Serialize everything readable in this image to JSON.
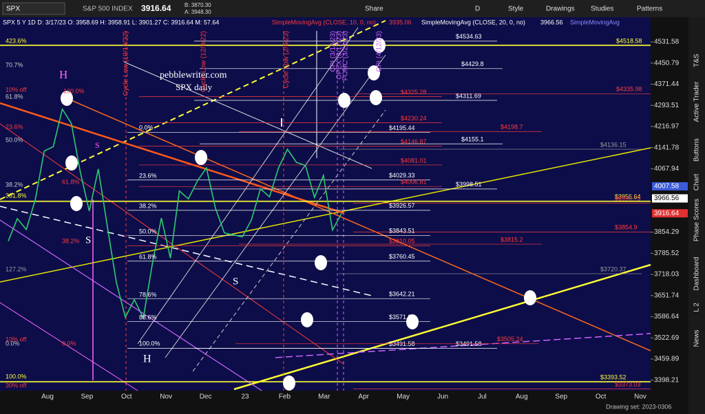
{
  "toolbar": {
    "symbol": "SPX",
    "name": "S&P 500 INDEX",
    "last": "3916.64",
    "bid": "B: 3870.30",
    "ask": "A: 3948.30",
    "buttons": [
      "Share",
      "D",
      "Style",
      "Drawings",
      "Studies",
      "Patterns"
    ]
  },
  "header": {
    "quote": "SPX 5 Y 1D  D: 3/17/23  O: 3958.69  H: 3958.91  L: 3901.27  C: 3916.64  M: 57.64",
    "studies": [
      {
        "text": "SimpleMovingAvg (CLOSE, 10, 0, no)",
        "value": "3935.06",
        "color": "#ff3b3b"
      },
      {
        "text": "SimpleMovingAvg (CLOSE, 20, 0, no)",
        "value": "3966.56",
        "color": "#ffffff"
      },
      {
        "text": "SimpleMovingAvg",
        "color": "#8c8cff"
      }
    ]
  },
  "chart_data": {
    "type": "line",
    "log_scale": true,
    "ylim": [
      3368,
      4628
    ],
    "yticks": [
      4531.58,
      4450.79,
      4371.44,
      4293.51,
      4216.97,
      4141.78,
      4067.94,
      3854.29,
      3785.52,
      3718.03,
      3651.74,
      3586.64,
      3522.69,
      3459.89,
      3398.21
    ],
    "time_labels": [
      "Aug",
      "Sep",
      "Oct",
      "Nov",
      "Dec",
      "23",
      "Feb",
      "Mar",
      "Apr",
      "May",
      "Jun",
      "Jul",
      "Aug",
      "Sep",
      "Oct",
      "Nov"
    ],
    "series": [
      {
        "color": "#2ecc71",
        "values": [
          3825,
          3899,
          3863,
          3962,
          4130,
          4145,
          4280,
          4228,
          4057,
          3924,
          4067,
          3873,
          3693,
          3585,
          3639,
          3583,
          3752,
          3901,
          3770,
          3992,
          3965,
          4026,
          4071,
          3934,
          3852,
          3845,
          3839,
          3895,
          3999,
          3972,
          4070,
          4136,
          4090,
          4079,
          3970,
          4045,
          3861,
          3916
        ]
      }
    ],
    "levels": [
      {
        "label": "$4534.63",
        "value": 4534.63,
        "color": "#ffffff"
      },
      {
        "label": "$4518.58",
        "value": 4518.58,
        "color": "#ffff33"
      },
      {
        "label": "$4429.8",
        "value": 4429.8,
        "color": "#ffffff"
      },
      {
        "label": "$4325.28",
        "value": 4325.28,
        "color": "#ff3b3b"
      },
      {
        "label": "$4335.98",
        "value": 4335.98,
        "color": "#ff3b3b"
      },
      {
        "label": "$4311.69",
        "value": 4311.69,
        "color": "#ffffff"
      },
      {
        "label": "$4230.24",
        "value": 4230.24,
        "color": "#ff3b3b"
      },
      {
        "label": "$4198.7",
        "value": 4198.7,
        "color": "#ff3b3b"
      },
      {
        "label": "$4195.44",
        "value": 4195.44,
        "color": "#ffffff"
      },
      {
        "label": "$4146.87",
        "value": 4146.87,
        "color": "#ff3b3b"
      },
      {
        "label": "$4155.1",
        "value": 4155.1,
        "color": "#ffffff"
      },
      {
        "label": "$4136.15",
        "value": 4136.15,
        "color": "#9a9a9a"
      },
      {
        "label": "$4081.01",
        "value": 4081.01,
        "color": "#ff3b3b"
      },
      {
        "label": "$4029.33",
        "value": 4029.33,
        "color": "#ffffff"
      },
      {
        "label": "$4006.81",
        "value": 4006.81,
        "color": "#ff3b3b"
      },
      {
        "label": "$3998.51",
        "value": 3998.51,
        "color": "#ffffff"
      },
      {
        "label": "$3956.64",
        "value": 3956.64,
        "color": "#ffff33"
      },
      {
        "label": "$3950.73",
        "value": 3950.73,
        "color": "#ff3b3b"
      },
      {
        "label": "$3926.57",
        "value": 3926.57,
        "color": "#ffffff"
      },
      {
        "label": "$3854.9",
        "value": 3854.9,
        "color": "#ff3b3b"
      },
      {
        "label": "$3843.51",
        "value": 3843.51,
        "color": "#ffffff"
      },
      {
        "label": "$3810.05",
        "value": 3810.05,
        "color": "#ff3b3b"
      },
      {
        "label": "$3815.2",
        "value": 3815.2,
        "color": "#ff3b3b"
      },
      {
        "label": "$3760.45",
        "value": 3760.45,
        "color": "#ffffff"
      },
      {
        "label": "$3720.37",
        "value": 3720.37,
        "color": "#9a9a9a"
      },
      {
        "label": "$3642.21",
        "value": 3642.21,
        "color": "#ffffff"
      },
      {
        "label": "$3571.82",
        "value": 3571.82,
        "color": "#ffffff"
      },
      {
        "label": "$3491.58",
        "value": 3491.58,
        "color": "#ffffff"
      },
      {
        "label": "$3491.58",
        "value": 3491.58,
        "color": "#ffffff"
      },
      {
        "label": "$3505.24",
        "value": 3505.24,
        "color": "#ff3b3b"
      },
      {
        "label": "$3393.52",
        "value": 3393.52,
        "color": "#ffff33"
      },
      {
        "label": "$3373.03",
        "value": 3373.03,
        "color": "#ff3b3b"
      }
    ],
    "price_badges": [
      {
        "value": 4007.58,
        "color": "#3b5bdb"
      },
      {
        "value": 3966.56,
        "color": "#ffffff"
      },
      {
        "value": 3916.64,
        "color": "#e03131"
      }
    ],
    "annotations": [
      {
        "text": "423.6%",
        "color": "#ffff33"
      },
      {
        "text": "70.7%",
        "color": "#cccccc"
      },
      {
        "text": "61.8%",
        "color": "#cccccc"
      },
      {
        "text": "10% off",
        "color": "#ff3b3b"
      },
      {
        "text": "100.0%",
        "color": "#ff3b3b"
      },
      {
        "text": "23.6%",
        "color": "#ff3b3b"
      },
      {
        "text": "50.0%",
        "color": "#cccccc"
      },
      {
        "text": "38.2%",
        "color": "#cccccc"
      },
      {
        "text": "361.8%",
        "color": "#ffff33"
      },
      {
        "text": "0.0%",
        "color": "#ffffff"
      },
      {
        "text": "23.6%",
        "color": "#ffffff"
      },
      {
        "text": "38.2%",
        "color": "#ffffff"
      },
      {
        "text": "50.0%",
        "color": "#ffffff"
      },
      {
        "text": "61.8%",
        "color": "#ffffff"
      },
      {
        "text": "78.6%",
        "color": "#ffffff"
      },
      {
        "text": "88.6%",
        "color": "#ffffff"
      },
      {
        "text": "100.0%",
        "color": "#ffffff"
      },
      {
        "text": "61.8%",
        "color": "#ff3b3b"
      },
      {
        "text": "38.2%",
        "color": "#ff3b3b"
      },
      {
        "text": "10% off",
        "color": "#ff3b3b"
      },
      {
        "text": "0.0%",
        "color": "#cccccc"
      },
      {
        "text": "0.0%",
        "color": "#ff3b3b"
      },
      {
        "text": "100.0%",
        "color": "#ffff33"
      },
      {
        "text": "30% off",
        "color": "#ff3b3b"
      },
      {
        "text": "127.2%",
        "color": "#9a9a9a"
      },
      {
        "text": "pebblewriter.com",
        "color": "#ffffff"
      },
      {
        "text": "SPX daily",
        "color": "#ffffff"
      },
      {
        "text": "H",
        "color": "#ff66ff"
      },
      {
        "text": "H",
        "color": "#ffffff"
      },
      {
        "text": "S",
        "color": "#ffffff"
      },
      {
        "text": "S",
        "color": "#ffffff"
      },
      {
        "text": "S",
        "color": "#ff66ff"
      },
      {
        "text": "Cycle Low (10/13/22)",
        "color": "#ff3b3b"
      },
      {
        "text": "Cycle Low (12/9/22)",
        "color": "#ff3b3b"
      },
      {
        "text": "Cycle Low (2/6/23)",
        "color": "#ff3b3b"
      },
      {
        "text": "CPI (3/14/23)",
        "color": "#cc66ff"
      },
      {
        "text": "OPEX (3/17/23)",
        "color": "#cc66ff"
      },
      {
        "text": "FOMC (3/22/23)",
        "color": "#cc66ff"
      },
      {
        "text": "CPI (4/12/23)",
        "color": "#cc66ff"
      }
    ]
  },
  "sidebar": [
    "News",
    "L 2",
    "Dashboard",
    "Phase Scores",
    "Chart",
    "Buttons",
    "Active Trader",
    "T&S"
  ],
  "footer": "Drawing set: 2023-0306"
}
